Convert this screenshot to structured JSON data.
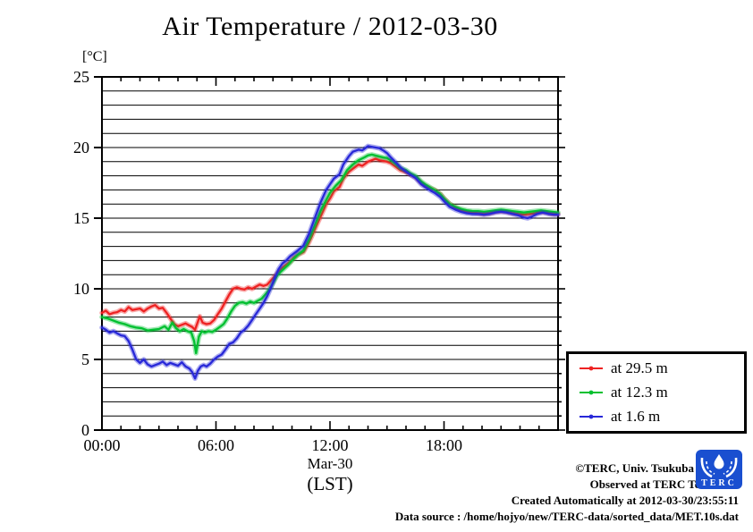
{
  "title": "Air Temperature / 2012-03-30",
  "y_axis_unit": "[°C]",
  "x_axis": {
    "tick_hours": [
      0,
      6,
      12,
      18
    ],
    "tick_labels": [
      "00:00",
      "06:00",
      "12:00",
      "18:00"
    ],
    "minor_step_hours": 1,
    "date_label": "Mar-30",
    "timezone_label": "(LST)"
  },
  "y_axis": {
    "tick_values": [
      0,
      5,
      10,
      15,
      20,
      25
    ],
    "minor_step": 1
  },
  "legend": {
    "items": [
      {
        "label": "at 29.5 m",
        "color": "#ee2222"
      },
      {
        "label": "at 12.3 m",
        "color": "#00c030"
      },
      {
        "label": "at 1.6 m",
        "color": "#2828d8"
      }
    ]
  },
  "credits": {
    "line1": "©TERC, Univ. Tsukuba",
    "line2": "Observed at TERC Tower site",
    "line3": "Created Automatically at 2012-03-30/23:55:11",
    "line4": "Data source : /home/hojyo/new/TERC-data/sorted_data/MET.10s.dat",
    "logo_text": "TERC",
    "logo_color": "#1a4fd0"
  },
  "chart_data": {
    "type": "line",
    "title": "Air Temperature / 2012-03-30",
    "xlabel": "Mar-30 (LST)",
    "ylabel": "[°C]",
    "xlim": [
      0,
      24
    ],
    "ylim": [
      0,
      25
    ],
    "grid": "horizontal lines every 1 degree C",
    "legend_position": "outside right, lower",
    "series": [
      {
        "name": "at 29.5 m",
        "color": "#ee2222",
        "points": [
          [
            0,
            8.3
          ],
          [
            0.2,
            8.45
          ],
          [
            0.4,
            8.2
          ],
          [
            0.6,
            8.3
          ],
          [
            0.8,
            8.35
          ],
          [
            1,
            8.5
          ],
          [
            1.2,
            8.4
          ],
          [
            1.4,
            8.7
          ],
          [
            1.6,
            8.5
          ],
          [
            1.8,
            8.55
          ],
          [
            2,
            8.6
          ],
          [
            2.2,
            8.4
          ],
          [
            2.4,
            8.6
          ],
          [
            2.6,
            8.75
          ],
          [
            2.8,
            8.85
          ],
          [
            3,
            8.6
          ],
          [
            3.2,
            8.65
          ],
          [
            3.4,
            8.3
          ],
          [
            3.6,
            7.9
          ],
          [
            3.8,
            7.5
          ],
          [
            4,
            7.35
          ],
          [
            4.2,
            7.45
          ],
          [
            4.4,
            7.55
          ],
          [
            4.6,
            7.4
          ],
          [
            4.75,
            7.3
          ],
          [
            4.9,
            7.1
          ],
          [
            5,
            7.5
          ],
          [
            5.15,
            8.05
          ],
          [
            5.3,
            7.6
          ],
          [
            5.5,
            7.5
          ],
          [
            5.7,
            7.55
          ],
          [
            5.9,
            7.8
          ],
          [
            6.1,
            8.2
          ],
          [
            6.3,
            8.6
          ],
          [
            6.5,
            9.1
          ],
          [
            6.7,
            9.6
          ],
          [
            6.9,
            10
          ],
          [
            7.1,
            10.1
          ],
          [
            7.3,
            10
          ],
          [
            7.5,
            9.95
          ],
          [
            7.7,
            10.1
          ],
          [
            7.9,
            10
          ],
          [
            8.1,
            10.15
          ],
          [
            8.3,
            10.3
          ],
          [
            8.5,
            10.2
          ],
          [
            8.7,
            10.3
          ],
          [
            8.9,
            10.6
          ],
          [
            9.1,
            10.9
          ],
          [
            9.3,
            11.2
          ],
          [
            9.5,
            11.5
          ],
          [
            9.7,
            11.7
          ],
          [
            9.9,
            11.9
          ],
          [
            10.1,
            12.2
          ],
          [
            10.3,
            12.4
          ],
          [
            10.6,
            12.6
          ],
          [
            10.9,
            13.3
          ],
          [
            11.2,
            14.2
          ],
          [
            11.5,
            15.1
          ],
          [
            11.8,
            16
          ],
          [
            12,
            16.4
          ],
          [
            12.2,
            16.9
          ],
          [
            12.5,
            17.2
          ],
          [
            12.7,
            17.8
          ],
          [
            13,
            18.3
          ],
          [
            13.2,
            18.5
          ],
          [
            13.5,
            18.8
          ],
          [
            13.7,
            18.7
          ],
          [
            14,
            19
          ],
          [
            14.2,
            19.1
          ],
          [
            14.4,
            19.2
          ],
          [
            14.6,
            19.1
          ],
          [
            14.8,
            19.05
          ],
          [
            15,
            19
          ],
          [
            15.2,
            18.9
          ],
          [
            15.5,
            18.6
          ],
          [
            15.7,
            18.4
          ],
          [
            16,
            18.25
          ],
          [
            16.2,
            18.1
          ],
          [
            16.5,
            17.9
          ],
          [
            16.8,
            17.5
          ],
          [
            17,
            17.3
          ],
          [
            17.3,
            17.1
          ],
          [
            17.5,
            17
          ],
          [
            17.8,
            16.7
          ],
          [
            18,
            16.4
          ],
          [
            18.3,
            16
          ],
          [
            18.6,
            15.75
          ],
          [
            18.9,
            15.55
          ],
          [
            19.2,
            15.45
          ],
          [
            19.5,
            15.4
          ],
          [
            19.8,
            15.35
          ],
          [
            20.1,
            15.3
          ],
          [
            20.4,
            15.35
          ],
          [
            20.7,
            15.45
          ],
          [
            21,
            15.5
          ],
          [
            21.3,
            15.45
          ],
          [
            21.6,
            15.35
          ],
          [
            21.9,
            15.3
          ],
          [
            22.2,
            15.25
          ],
          [
            22.5,
            15.3
          ],
          [
            22.8,
            15.35
          ],
          [
            23.1,
            15.45
          ],
          [
            23.4,
            15.4
          ],
          [
            23.7,
            15.3
          ],
          [
            24,
            15.3
          ]
        ]
      },
      {
        "name": "at 12.3 m",
        "color": "#00c030",
        "points": [
          [
            0,
            8
          ],
          [
            0.3,
            7.9
          ],
          [
            0.6,
            7.75
          ],
          [
            0.9,
            7.6
          ],
          [
            1.2,
            7.5
          ],
          [
            1.5,
            7.35
          ],
          [
            1.8,
            7.25
          ],
          [
            2.1,
            7.2
          ],
          [
            2.4,
            7.05
          ],
          [
            2.7,
            7.1
          ],
          [
            3,
            7.15
          ],
          [
            3.3,
            7.35
          ],
          [
            3.5,
            7.1
          ],
          [
            3.7,
            7.6
          ],
          [
            3.9,
            7.2
          ],
          [
            4.1,
            7
          ],
          [
            4.3,
            7.15
          ],
          [
            4.5,
            7
          ],
          [
            4.7,
            6.9
          ],
          [
            4.85,
            6.3
          ],
          [
            4.95,
            5.45
          ],
          [
            5.1,
            6.6
          ],
          [
            5.25,
            7
          ],
          [
            5.4,
            6.9
          ],
          [
            5.6,
            7
          ],
          [
            5.8,
            6.95
          ],
          [
            6,
            7.1
          ],
          [
            6.2,
            7.3
          ],
          [
            6.4,
            7.5
          ],
          [
            6.6,
            7.9
          ],
          [
            6.8,
            8.4
          ],
          [
            7,
            8.8
          ],
          [
            7.2,
            9
          ],
          [
            7.4,
            9.05
          ],
          [
            7.6,
            8.95
          ],
          [
            7.8,
            9.1
          ],
          [
            8,
            9
          ],
          [
            8.2,
            9.15
          ],
          [
            8.4,
            9.3
          ],
          [
            8.6,
            9.6
          ],
          [
            8.8,
            9.95
          ],
          [
            9,
            10.4
          ],
          [
            9.2,
            10.9
          ],
          [
            9.4,
            11.2
          ],
          [
            9.6,
            11.45
          ],
          [
            9.8,
            11.7
          ],
          [
            10,
            12
          ],
          [
            10.3,
            12.4
          ],
          [
            10.6,
            12.7
          ],
          [
            10.9,
            13.5
          ],
          [
            11.2,
            14.5
          ],
          [
            11.5,
            15.5
          ],
          [
            11.8,
            16.3
          ],
          [
            12,
            16.8
          ],
          [
            12.3,
            17.3
          ],
          [
            12.6,
            17.7
          ],
          [
            12.9,
            18.4
          ],
          [
            13.2,
            18.8
          ],
          [
            13.5,
            19.1
          ],
          [
            13.8,
            19.3
          ],
          [
            14,
            19.45
          ],
          [
            14.2,
            19.5
          ],
          [
            14.5,
            19.4
          ],
          [
            14.8,
            19.3
          ],
          [
            15,
            19.25
          ],
          [
            15.2,
            19.1
          ],
          [
            15.5,
            18.8
          ],
          [
            15.7,
            18.55
          ],
          [
            16,
            18.4
          ],
          [
            16.2,
            18.2
          ],
          [
            16.5,
            18
          ],
          [
            16.8,
            17.6
          ],
          [
            17,
            17.4
          ],
          [
            17.3,
            17.15
          ],
          [
            17.5,
            17
          ],
          [
            17.8,
            16.7
          ],
          [
            18,
            16.4
          ],
          [
            18.3,
            16
          ],
          [
            18.6,
            15.8
          ],
          [
            18.9,
            15.65
          ],
          [
            19.2,
            15.55
          ],
          [
            19.5,
            15.5
          ],
          [
            19.8,
            15.5
          ],
          [
            20.1,
            15.45
          ],
          [
            20.4,
            15.5
          ],
          [
            20.7,
            15.55
          ],
          [
            21,
            15.6
          ],
          [
            21.3,
            15.55
          ],
          [
            21.6,
            15.5
          ],
          [
            21.9,
            15.45
          ],
          [
            22.2,
            15.4
          ],
          [
            22.5,
            15.45
          ],
          [
            22.8,
            15.5
          ],
          [
            23.1,
            15.55
          ],
          [
            23.4,
            15.5
          ],
          [
            23.7,
            15.45
          ],
          [
            24,
            15.4
          ]
        ]
      },
      {
        "name": "at 1.6 m",
        "color": "#2828d8",
        "points": [
          [
            0,
            7.25
          ],
          [
            0.2,
            7.1
          ],
          [
            0.4,
            6.9
          ],
          [
            0.6,
            7
          ],
          [
            0.8,
            6.85
          ],
          [
            1,
            6.7
          ],
          [
            1.2,
            6.65
          ],
          [
            1.4,
            6.3
          ],
          [
            1.6,
            5.7
          ],
          [
            1.8,
            5
          ],
          [
            2,
            4.75
          ],
          [
            2.2,
            5
          ],
          [
            2.4,
            4.65
          ],
          [
            2.6,
            4.5
          ],
          [
            2.8,
            4.6
          ],
          [
            3,
            4.7
          ],
          [
            3.2,
            4.85
          ],
          [
            3.4,
            4.6
          ],
          [
            3.6,
            4.75
          ],
          [
            3.8,
            4.65
          ],
          [
            4,
            4.55
          ],
          [
            4.2,
            4.8
          ],
          [
            4.4,
            4.5
          ],
          [
            4.6,
            4.35
          ],
          [
            4.75,
            4.1
          ],
          [
            4.9,
            3.65
          ],
          [
            5.05,
            4.2
          ],
          [
            5.2,
            4.5
          ],
          [
            5.35,
            4.6
          ],
          [
            5.5,
            4.5
          ],
          [
            5.7,
            4.7
          ],
          [
            5.9,
            5
          ],
          [
            6.1,
            5.2
          ],
          [
            6.3,
            5.35
          ],
          [
            6.5,
            5.7
          ],
          [
            6.7,
            6.1
          ],
          [
            6.9,
            6.2
          ],
          [
            7.1,
            6.5
          ],
          [
            7.3,
            6.9
          ],
          [
            7.5,
            7.1
          ],
          [
            7.7,
            7.4
          ],
          [
            7.9,
            7.8
          ],
          [
            8.1,
            8.2
          ],
          [
            8.3,
            8.6
          ],
          [
            8.5,
            9
          ],
          [
            8.7,
            9.5
          ],
          [
            8.9,
            10.1
          ],
          [
            9.1,
            10.8
          ],
          [
            9.3,
            11.4
          ],
          [
            9.5,
            11.8
          ],
          [
            9.7,
            12
          ],
          [
            9.9,
            12.3
          ],
          [
            10.1,
            12.5
          ],
          [
            10.3,
            12.7
          ],
          [
            10.6,
            13.05
          ],
          [
            10.9,
            13.9
          ],
          [
            11.2,
            15
          ],
          [
            11.5,
            16.1
          ],
          [
            11.8,
            17
          ],
          [
            12,
            17.4
          ],
          [
            12.2,
            17.8
          ],
          [
            12.5,
            18.1
          ],
          [
            12.7,
            18.8
          ],
          [
            13,
            19.4
          ],
          [
            13.2,
            19.7
          ],
          [
            13.5,
            19.85
          ],
          [
            13.7,
            19.8
          ],
          [
            14,
            20.1
          ],
          [
            14.2,
            20.05
          ],
          [
            14.4,
            20
          ],
          [
            14.6,
            19.95
          ],
          [
            14.8,
            19.8
          ],
          [
            15,
            19.6
          ],
          [
            15.2,
            19.3
          ],
          [
            15.5,
            18.9
          ],
          [
            15.7,
            18.6
          ],
          [
            16,
            18.3
          ],
          [
            16.2,
            18.1
          ],
          [
            16.5,
            17.85
          ],
          [
            16.8,
            17.4
          ],
          [
            17,
            17.2
          ],
          [
            17.3,
            16.95
          ],
          [
            17.5,
            16.8
          ],
          [
            17.8,
            16.5
          ],
          [
            18,
            16.2
          ],
          [
            18.3,
            15.8
          ],
          [
            18.6,
            15.6
          ],
          [
            18.9,
            15.45
          ],
          [
            19.2,
            15.35
          ],
          [
            19.5,
            15.3
          ],
          [
            19.8,
            15.3
          ],
          [
            20.1,
            15.25
          ],
          [
            20.4,
            15.3
          ],
          [
            20.7,
            15.4
          ],
          [
            21,
            15.45
          ],
          [
            21.3,
            15.4
          ],
          [
            21.6,
            15.3
          ],
          [
            21.9,
            15.2
          ],
          [
            22.2,
            15.05
          ],
          [
            22.4,
            15
          ],
          [
            22.6,
            15.1
          ],
          [
            22.9,
            15.3
          ],
          [
            23.2,
            15.4
          ],
          [
            23.5,
            15.3
          ],
          [
            23.8,
            15.25
          ],
          [
            24,
            15.25
          ]
        ]
      }
    ]
  }
}
